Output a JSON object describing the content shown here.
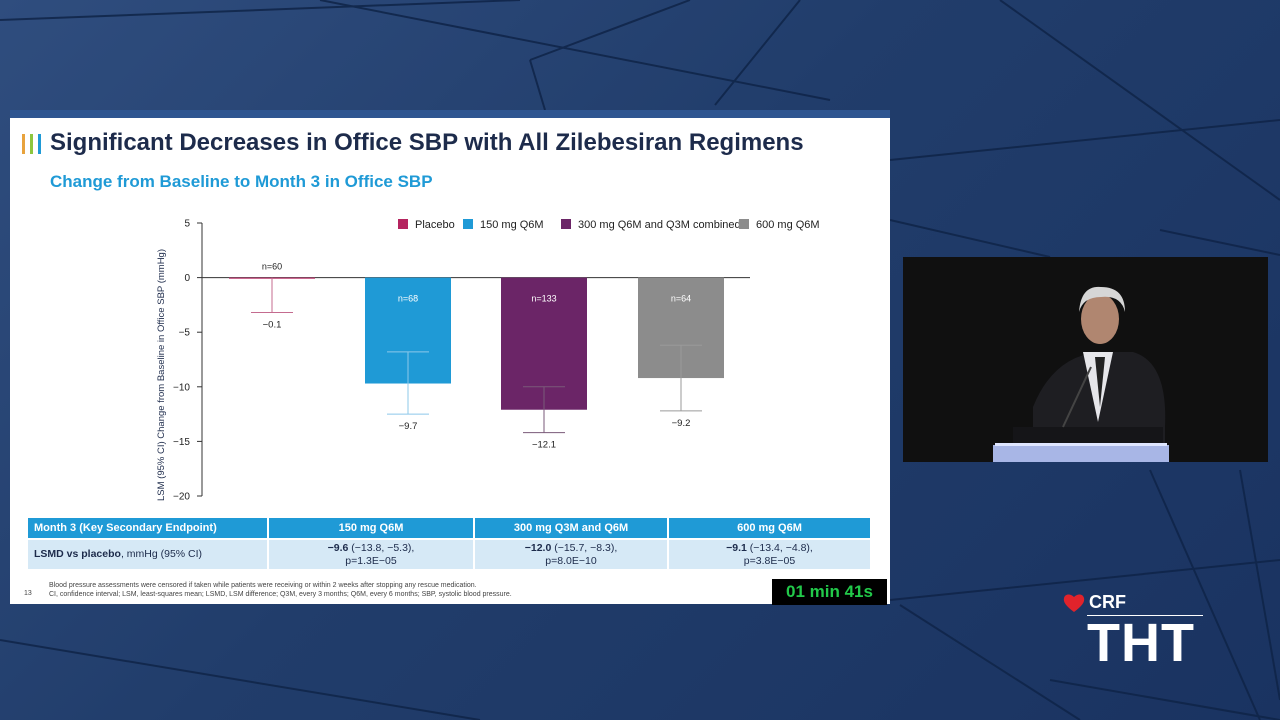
{
  "slide": {
    "title": "Significant Decreases in Office SBP with All Zilebesiran Regimens",
    "subtitle": "Change from Baseline to Month 3 in Office SBP",
    "slide_number": "13",
    "footnote_1": "Blood pressure assessments were censored if taken while patients were receiving or within 2 weeks after stopping any rescue medication.",
    "footnote_2": "CI, confidence interval; LSM, least-squares mean; LSMD, LSM difference; Q3M, every 3 months; Q6M, every 6 months; SBP, systolic blood pressure."
  },
  "chart_data": {
    "type": "bar",
    "ylabel": "LSM (95% CI) Change from Baseline in Office SBP (mmHg)",
    "ylim": [
      -20,
      5
    ],
    "yticks": [
      5,
      0,
      -5,
      -10,
      -15,
      -20
    ],
    "legend_position": "top-right",
    "grid": false,
    "series": [
      {
        "name": "Placebo",
        "color": "#b5245f",
        "value": -0.1,
        "value_label": "−0.1",
        "ci": [
          -3.2,
          0
        ],
        "n": "n=60"
      },
      {
        "name": "150 mg Q6M",
        "color": "#1f9ad6",
        "value": -9.7,
        "value_label": "−9.7",
        "ci": [
          -12.5,
          -6.8
        ],
        "n": "n=68"
      },
      {
        "name": "300 mg Q6M and Q3M combined",
        "color": "#6b2567",
        "value": -12.1,
        "value_label": "−12.1",
        "ci": [
          -14.2,
          -10.0
        ],
        "n": "n=133"
      },
      {
        "name": "600 mg Q6M",
        "color": "#8c8c8c",
        "value": -9.2,
        "value_label": "−9.2",
        "ci": [
          -12.2,
          -6.2
        ],
        "n": "n=64"
      }
    ]
  },
  "table": {
    "headers": [
      "Month 3 (Key Secondary Endpoint)",
      "150 mg Q6M",
      "300 mg Q3M and Q6M",
      "600 mg Q6M"
    ],
    "row_label_bold": "LSMD vs placebo",
    "row_label_rest": ", mmHg (95% CI)",
    "cells": [
      {
        "bold": "−9.6",
        "ci": " (−13.8, −5.3),",
        "p": "p=1.3E−05"
      },
      {
        "bold": "−12.0",
        "ci": " (−15.7, −8.3),",
        "p": "p=8.0E−10"
      },
      {
        "bold": "−9.1",
        "ci": " (−13.4, −4.8),",
        "p": "p=3.8E−05"
      }
    ]
  },
  "timer": "01 min 41s",
  "brand": {
    "crf": "CRF",
    "tht": "THT"
  },
  "icons": {
    "brand": "heart-icon"
  }
}
